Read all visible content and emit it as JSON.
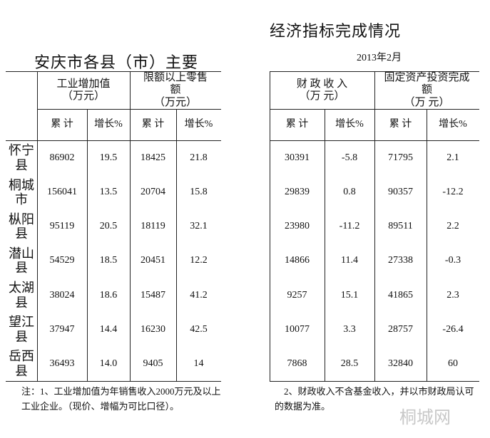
{
  "title_left": "安庆市各县（市）主要",
  "title_right": "经济指标完成情况",
  "date": "2013年2月",
  "table": {
    "group_headers": [
      "工业增加值\n（万元）",
      "限额以上零售\n额\n（万元）",
      "财 政 收 入\n（万 元）",
      "固定资产投资完成\n额\n（万 元）"
    ],
    "sub_headers": [
      "累 计",
      "增长%",
      "累 计",
      "增长%",
      "累 计",
      "增长%",
      "累 计",
      "增长%"
    ],
    "rows": [
      [
        "怀宁县",
        "86902",
        "19.5",
        "18425",
        "21.8",
        "30391",
        "-5.8",
        "71795",
        "2.1"
      ],
      [
        "桐城市",
        "156041",
        "13.5",
        "20704",
        "15.8",
        "29839",
        "0.8",
        "90357",
        "-12.2"
      ],
      [
        "枞阳县",
        "95119",
        "20.5",
        "18119",
        "32.1",
        "23980",
        "-11.2",
        "89511",
        "2.2"
      ],
      [
        "潜山县",
        "54529",
        "18.5",
        "20451",
        "12.2",
        "14866",
        "11.4",
        "27338",
        "-0.3"
      ],
      [
        "太湖县",
        "38024",
        "18.6",
        "15487",
        "41.2",
        "9257",
        "15.1",
        "41865",
        "2.3"
      ],
      [
        "望江县",
        "37947",
        "14.4",
        "16230",
        "42.5",
        "10077",
        "3.3",
        "28757",
        "-26.4"
      ],
      [
        "岳西县",
        "36493",
        "14.0",
        "9405",
        "14",
        "7868",
        "28.5",
        "32840",
        "60"
      ]
    ]
  },
  "notes": [
    "注：1、工业增加值为年销售收入2000万元及以上工业企业。（现价、增幅为可比口径）。",
    "2、财政收入不含基金收入，并以市财政局认可的数据为准。"
  ],
  "watermark": "桐城网"
}
